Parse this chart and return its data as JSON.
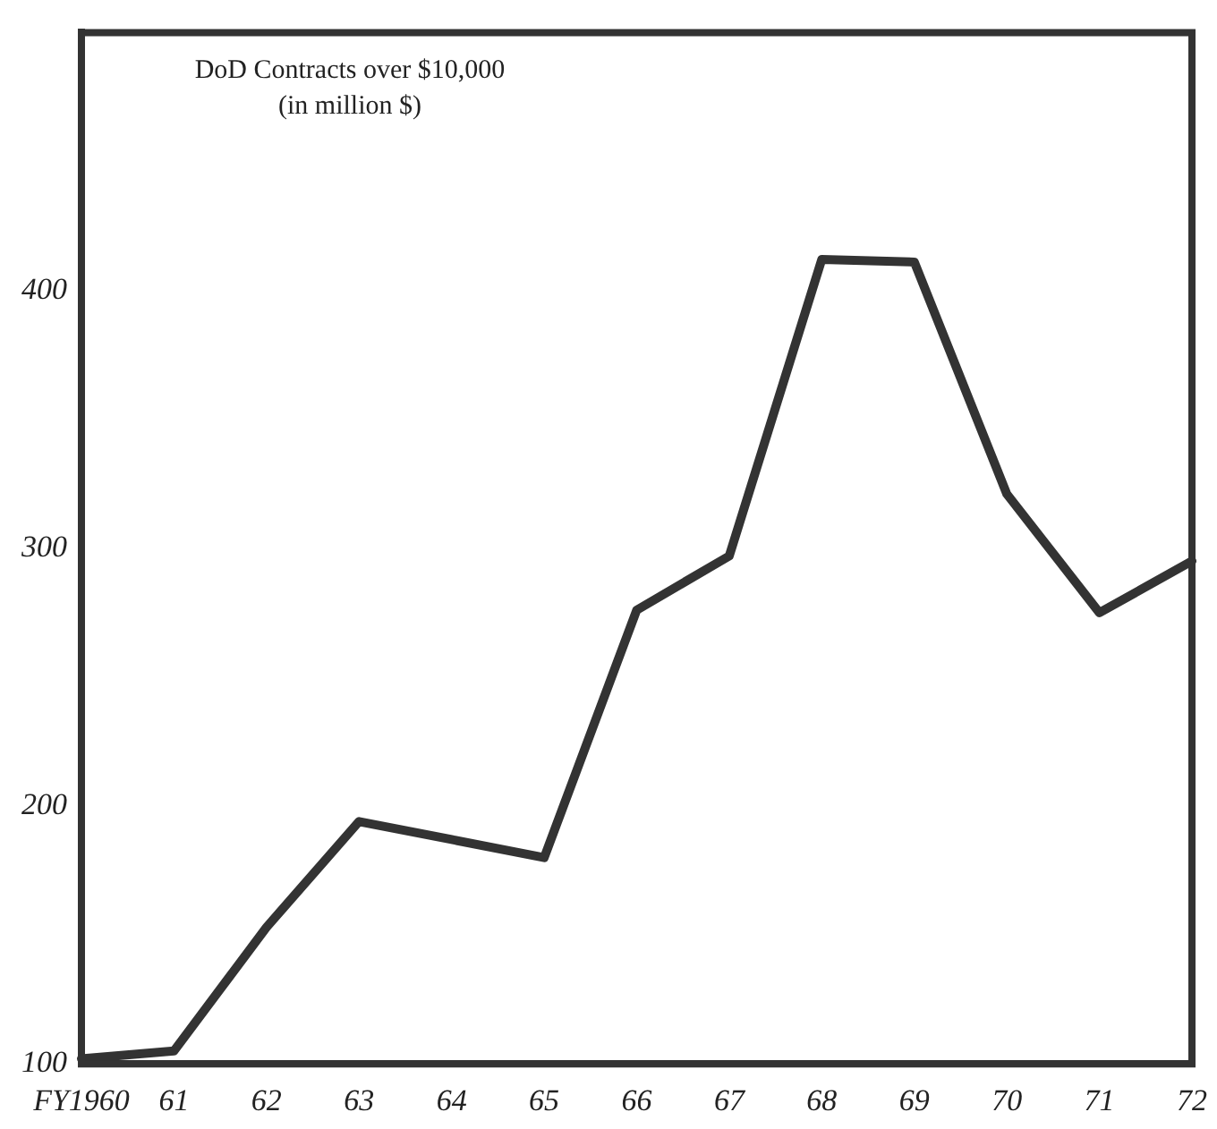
{
  "chart_data": {
    "type": "line",
    "title": "DoD Contracts over $10,000",
    "subtitle": "(in million $)",
    "categories": [
      "FY1960",
      "61",
      "62",
      "63",
      "64",
      "65",
      "66",
      "67",
      "68",
      "69",
      "70",
      "71",
      "72"
    ],
    "series": [
      {
        "color": "#333333",
        "values": [
          102,
          105,
          153,
          194,
          187,
          180,
          276,
          297,
          412,
          411,
          321,
          275,
          295
        ]
      }
    ],
    "ylim": [
      100,
      500
    ],
    "yticks": [
      100,
      200,
      300,
      400
    ],
    "grid": false,
    "legend": false,
    "marker": "none",
    "line_style": "solid"
  }
}
